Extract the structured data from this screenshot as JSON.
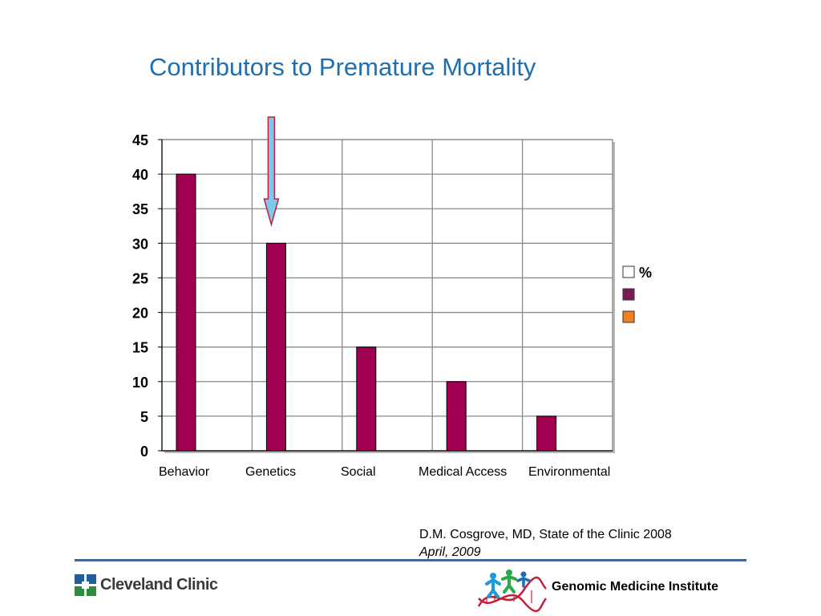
{
  "slide": {
    "title": "Contributors to Premature Mortality",
    "citation": {
      "line1": "D.M. Cosgrove, MD, State of the Clinic 2008",
      "line2": "April, 2009"
    },
    "footer": {
      "org_name": "Cleveland Clinic",
      "institute_name": "Genomic Medicine Institute"
    }
  },
  "chart_data": {
    "type": "bar",
    "categories": [
      "Behavior",
      "Genetics",
      "Social",
      "Medical Access",
      "Environmental"
    ],
    "series": [
      {
        "name": "%",
        "values": [
          40,
          30,
          15,
          10,
          5
        ],
        "color": "#a00050"
      }
    ],
    "ylim": [
      0,
      45
    ],
    "yticks": [
      0,
      5,
      10,
      15,
      20,
      25,
      30,
      35,
      40,
      45
    ],
    "grid": true,
    "legend": {
      "position": "right",
      "entries": [
        {
          "label": "%",
          "color": "#ffffff"
        },
        {
          "label": "",
          "color": "#7a1a5a"
        },
        {
          "label": "",
          "color": "#f08020"
        }
      ]
    },
    "annotation": {
      "type": "arrow",
      "target_category": "Genetics",
      "color": "#7ec8f0"
    }
  }
}
